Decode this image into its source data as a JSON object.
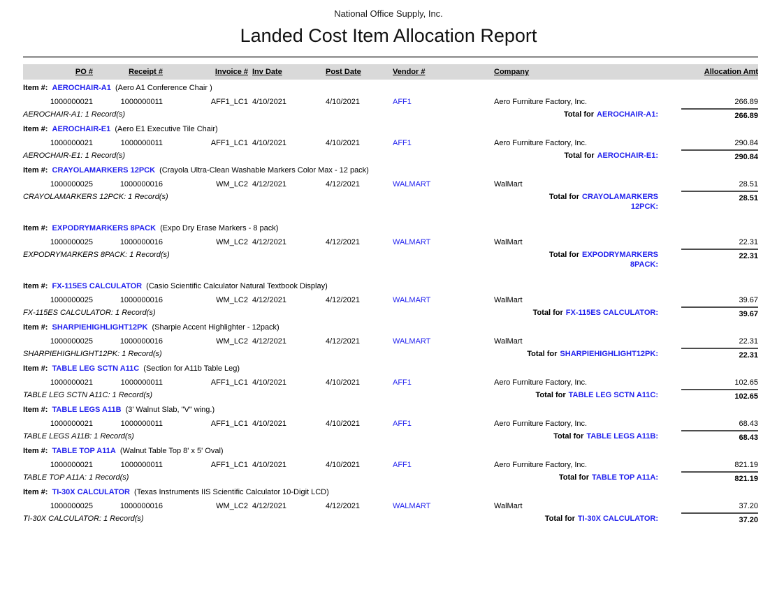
{
  "header": {
    "company_name": "National Office Supply, Inc.",
    "report_title": "Landed Cost Item Allocation Report"
  },
  "columns": [
    "PO #",
    "Receipt #",
    "Invoice #",
    "Inv Date",
    "Post Date",
    "Vendor #",
    "Company",
    "Allocation Amt"
  ],
  "labels": {
    "item_prefix": "Item #:",
    "total_prefix": "Total for"
  },
  "colors": {
    "link_blue": "#2222ee",
    "header_band": "#d9d9d9"
  },
  "sections": [
    {
      "item_code": "AEROCHAIR-A1",
      "item_description": "(Aero A1 Conference Chair )",
      "row": {
        "po": "1000000021",
        "receipt": "1000000011",
        "invoice": "AFF1_LC1",
        "inv_date": "4/10/2021",
        "post_date": "4/10/2021",
        "vendor": "AFF1",
        "company": "Aero Furniture Factory, Inc.",
        "amount": "266.89"
      },
      "record_summary": "AEROCHAIR-A1: 1 Record(s)",
      "total_amount": "266.89"
    },
    {
      "item_code": "AEROCHAIR-E1",
      "item_description": "(Aero E1 Executive Tile Chair)",
      "row": {
        "po": "1000000021",
        "receipt": "1000000011",
        "invoice": "AFF1_LC1",
        "inv_date": "4/10/2021",
        "post_date": "4/10/2021",
        "vendor": "AFF1",
        "company": "Aero Furniture Factory, Inc.",
        "amount": "290.84"
      },
      "record_summary": "AEROCHAIR-E1: 1 Record(s)",
      "total_amount": "290.84"
    },
    {
      "item_code": "CRAYOLAMARKERS 12PCK",
      "item_description": "(Crayola Ultra-Clean Washable Markers Color Max - 12 pack)",
      "row": {
        "po": "1000000025",
        "receipt": "1000000016",
        "invoice": "WM_LC2",
        "inv_date": "4/12/2021",
        "post_date": "4/12/2021",
        "vendor": "WALMART",
        "company": "WalMart",
        "amount": "28.51"
      },
      "record_summary": "CRAYOLAMARKERS 12PCK: 1 Record(s)",
      "total_amount": "28.51"
    },
    {
      "item_code": "EXPODRYMARKERS 8PACK",
      "item_description": "(Expo Dry Erase Markers - 8 pack)",
      "row": {
        "po": "1000000025",
        "receipt": "1000000016",
        "invoice": "WM_LC2",
        "inv_date": "4/12/2021",
        "post_date": "4/12/2021",
        "vendor": "WALMART",
        "company": "WalMart",
        "amount": "22.31"
      },
      "record_summary": "EXPODRYMARKERS 8PACK: 1 Record(s)",
      "total_amount": "22.31"
    },
    {
      "item_code": "FX-115ES CALCULATOR",
      "item_description": "(Casio Scientific Calculator Natural Textbook Display)",
      "row": {
        "po": "1000000025",
        "receipt": "1000000016",
        "invoice": "WM_LC2",
        "inv_date": "4/12/2021",
        "post_date": "4/12/2021",
        "vendor": "WALMART",
        "company": "WalMart",
        "amount": "39.67"
      },
      "record_summary": "FX-115ES CALCULATOR: 1 Record(s)",
      "total_amount": "39.67"
    },
    {
      "item_code": "SHARPIEHIGHLIGHT12PK",
      "item_description": "(Sharpie Accent Highlighter - 12pack)",
      "row": {
        "po": "1000000025",
        "receipt": "1000000016",
        "invoice": "WM_LC2",
        "inv_date": "4/12/2021",
        "post_date": "4/12/2021",
        "vendor": "WALMART",
        "company": "WalMart",
        "amount": "22.31"
      },
      "record_summary": "SHARPIEHIGHLIGHT12PK: 1 Record(s)",
      "total_amount": "22.31"
    },
    {
      "item_code": "TABLE LEG SCTN A11C",
      "item_description": "(Section for A11b Table Leg)",
      "row": {
        "po": "1000000021",
        "receipt": "1000000011",
        "invoice": "AFF1_LC1",
        "inv_date": "4/10/2021",
        "post_date": "4/10/2021",
        "vendor": "AFF1",
        "company": "Aero Furniture Factory, Inc.",
        "amount": "102.65"
      },
      "record_summary": "TABLE LEG SCTN A11C: 1 Record(s)",
      "total_amount": "102.65"
    },
    {
      "item_code": "TABLE LEGS A11B",
      "item_description": "(3' Walnut Slab, \"V\" wing.)",
      "row": {
        "po": "1000000021",
        "receipt": "1000000011",
        "invoice": "AFF1_LC1",
        "inv_date": "4/10/2021",
        "post_date": "4/10/2021",
        "vendor": "AFF1",
        "company": "Aero Furniture Factory, Inc.",
        "amount": "68.43"
      },
      "record_summary": "TABLE LEGS A11B: 1 Record(s)",
      "total_amount": "68.43"
    },
    {
      "item_code": "TABLE TOP A11A",
      "item_description": "(Walnut Table Top 8' x 5' Oval)",
      "row": {
        "po": "1000000021",
        "receipt": "1000000011",
        "invoice": "AFF1_LC1",
        "inv_date": "4/10/2021",
        "post_date": "4/10/2021",
        "vendor": "AFF1",
        "company": "Aero Furniture Factory, Inc.",
        "amount": "821.19"
      },
      "record_summary": "TABLE TOP A11A: 1 Record(s)",
      "total_amount": "821.19"
    },
    {
      "item_code": "TI-30X CALCULATOR",
      "item_description": "(Texas Instruments IIS Scientific Calculator 10-Digit LCD)",
      "row": {
        "po": "1000000025",
        "receipt": "1000000016",
        "invoice": "WM_LC2",
        "inv_date": "4/12/2021",
        "post_date": "4/12/2021",
        "vendor": "WALMART",
        "company": "WalMart",
        "amount": "37.20"
      },
      "record_summary": "TI-30X CALCULATOR: 1 Record(s)",
      "total_amount": "37.20"
    }
  ]
}
